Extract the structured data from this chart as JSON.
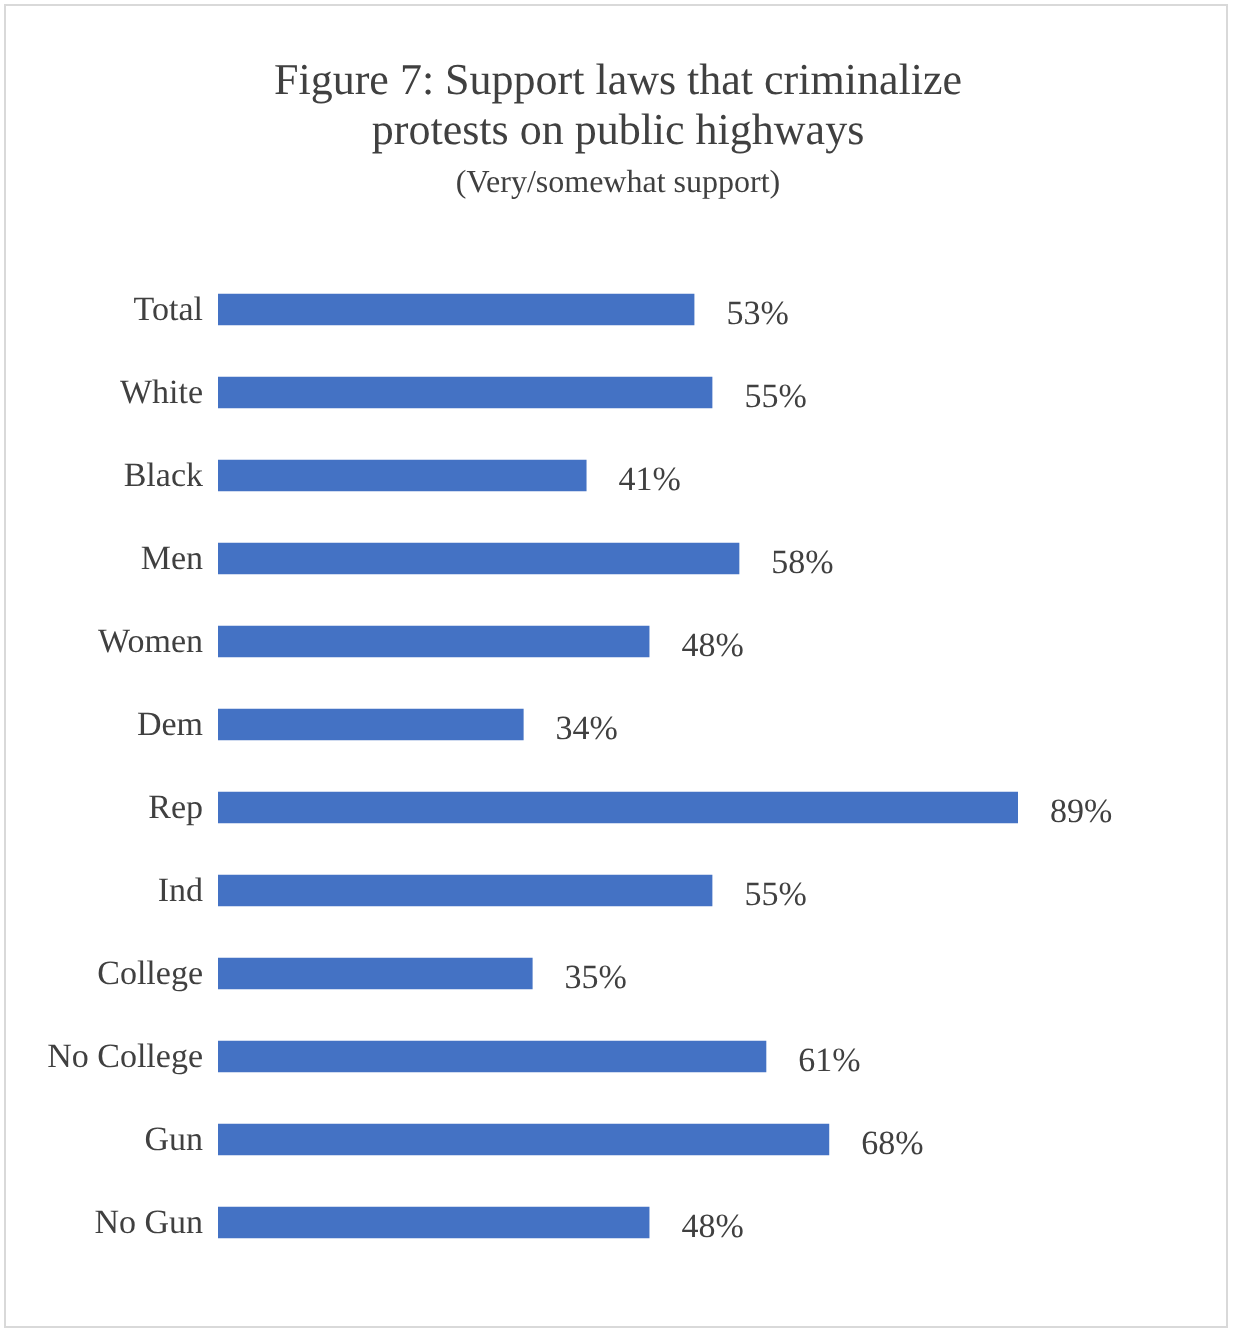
{
  "chart_data": {
    "type": "bar",
    "orientation": "horizontal",
    "title": "Figure 7: Support laws that criminalize protests on public highways",
    "subtitle": "(Very/somewhat support)",
    "categories": [
      "Total",
      "White",
      "Black",
      "Men",
      "Women",
      "Dem",
      "Rep",
      "Ind",
      "College",
      "No College",
      "Gun",
      "No Gun"
    ],
    "values": [
      53,
      55,
      41,
      58,
      48,
      34,
      89,
      55,
      35,
      61,
      68,
      48
    ],
    "value_labels": [
      "53%",
      "55%",
      "41%",
      "58%",
      "48%",
      "34%",
      "89%",
      "55%",
      "35%",
      "61%",
      "68%",
      "48%"
    ],
    "color": "#4472c4"
  }
}
